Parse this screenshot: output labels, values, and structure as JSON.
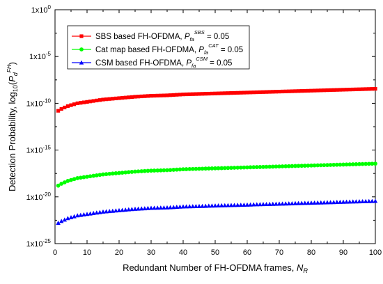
{
  "chart_data": {
    "type": "scatter",
    "xlabel": {
      "main": "Redundant Number of FH-OFDMA frames, ",
      "var": "N",
      "sub": "R"
    },
    "ylabel": {
      "main": "Detection Probability, log",
      "base": "10",
      "open": "(",
      "var": "P",
      "sub": "d",
      "sup": "FH",
      "close": ")"
    },
    "xlim": [
      0,
      100
    ],
    "ylim_exponent": [
      -25,
      0
    ],
    "x_ticks": [
      "0",
      "10",
      "20",
      "30",
      "40",
      "50",
      "60",
      "70",
      "80",
      "90",
      "100"
    ],
    "y_ticks": [
      {
        "mant": "1x10",
        "exp": "0"
      },
      {
        "mant": "1x10",
        "exp": "-5"
      },
      {
        "mant": "1x10",
        "exp": "-10"
      },
      {
        "mant": "1x10",
        "exp": "-15"
      },
      {
        "mant": "1x10",
        "exp": "-20"
      },
      {
        "mant": "1x10",
        "exp": "-25"
      }
    ],
    "y_scale": "log",
    "grid": false,
    "legend_position": "top-left",
    "x": [
      1,
      2,
      3,
      4,
      5,
      6,
      7,
      8,
      9,
      10,
      12,
      15,
      20,
      25,
      30,
      35,
      40,
      45,
      50,
      55,
      60,
      65,
      70,
      75,
      80,
      85,
      90,
      95,
      100
    ],
    "series": [
      {
        "name": "SBS based FH-OFDMA, ",
        "pvar": "P",
        "psub": "fa",
        "psup": "SBS",
        "tail": " = 0.05",
        "color": "#ff0000",
        "marker": "square",
        "log10_values": [
          -10.8,
          -10.6,
          -10.45,
          -10.3,
          -10.2,
          -10.1,
          -10.0,
          -9.95,
          -9.9,
          -9.85,
          -9.75,
          -9.6,
          -9.45,
          -9.3,
          -9.2,
          -9.15,
          -9.05,
          -9.0,
          -8.95,
          -8.9,
          -8.85,
          -8.8,
          -8.75,
          -8.7,
          -8.65,
          -8.6,
          -8.55,
          -8.5,
          -8.45
        ]
      },
      {
        "name": "Cat map based FH-OFDMA, ",
        "pvar": "P",
        "psub": "fa",
        "psup": "CAT",
        "tail": " = 0.05",
        "color": "#00ff00",
        "marker": "circle",
        "log10_values": [
          -18.8,
          -18.6,
          -18.45,
          -18.3,
          -18.2,
          -18.1,
          -18.0,
          -17.95,
          -17.9,
          -17.85,
          -17.75,
          -17.6,
          -17.45,
          -17.3,
          -17.2,
          -17.15,
          -17.05,
          -17.0,
          -16.95,
          -16.9,
          -16.85,
          -16.8,
          -16.75,
          -16.7,
          -16.65,
          -16.6,
          -16.55,
          -16.5,
          -16.45
        ]
      },
      {
        "name": "CSM based FH-OFDMA, ",
        "pvar": "P",
        "psub": "fa",
        "psup": "CSM",
        "tail": " = 0.05",
        "color": "#0000ff",
        "marker": "triangle",
        "log10_values": [
          -22.8,
          -22.6,
          -22.45,
          -22.3,
          -22.2,
          -22.1,
          -22.0,
          -21.95,
          -21.9,
          -21.85,
          -21.75,
          -21.6,
          -21.45,
          -21.3,
          -21.2,
          -21.15,
          -21.05,
          -21.0,
          -20.95,
          -20.9,
          -20.85,
          -20.8,
          -20.75,
          -20.7,
          -20.65,
          -20.6,
          -20.55,
          -20.5,
          -20.45
        ]
      }
    ]
  }
}
